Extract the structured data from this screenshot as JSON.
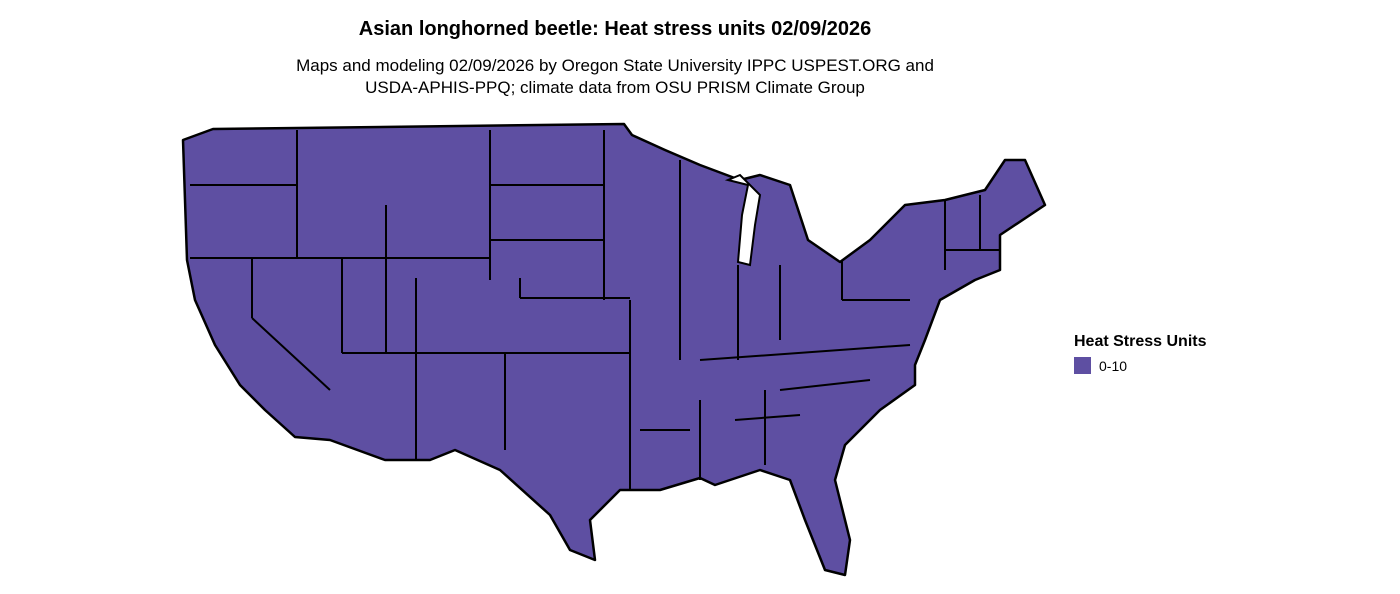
{
  "title": "Asian longhorned beetle: Heat stress units 02/09/2026",
  "subtitle_line1": "Maps and modeling 02/09/2026 by Oregon State University IPPC USPEST.ORG and",
  "subtitle_line2": "USDA-APHIS-PPQ; climate data from OSU PRISM Climate Group",
  "map": {
    "region": "Contiguous United States",
    "fill_color": "#5e4fa2",
    "border_color": "#000000",
    "all_states_class": "0-10"
  },
  "legend": {
    "title": "Heat Stress Units",
    "items": [
      {
        "label": "0-10",
        "color": "#5e4fa2"
      }
    ]
  }
}
